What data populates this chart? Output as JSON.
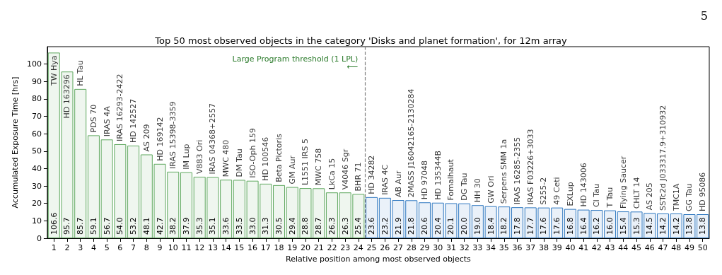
{
  "chart_data": {
    "type": "bar",
    "title": "Top 50 most observed objects in the category 'Disks and planet formation', for 12m array",
    "xlabel": "Relative position among most observed objects",
    "ylabel": "Accumulated Exposure Time [hrs]",
    "x": [
      1,
      2,
      3,
      4,
      5,
      6,
      7,
      8,
      9,
      10,
      11,
      12,
      13,
      14,
      15,
      16,
      17,
      18,
      19,
      20,
      21,
      22,
      23,
      24,
      25,
      26,
      27,
      28,
      29,
      30,
      31,
      32,
      33,
      34,
      35,
      36,
      37,
      38,
      39,
      40,
      41,
      42,
      43,
      44,
      45,
      46,
      47,
      48,
      49,
      50
    ],
    "values": [
      106.6,
      95.7,
      85.7,
      59.1,
      56.7,
      54.0,
      53.2,
      48.1,
      42.7,
      38.2,
      37.9,
      35.3,
      35.1,
      33.6,
      33.5,
      33.0,
      31.3,
      30.5,
      29.4,
      28.8,
      28.7,
      26.3,
      26.3,
      25.4,
      23.6,
      23.2,
      21.9,
      21.8,
      20.6,
      20.4,
      20.1,
      20.0,
      19.0,
      18.4,
      18.2,
      17.8,
      17.7,
      17.6,
      17.6,
      16.8,
      16.4,
      16.2,
      16.0,
      15.4,
      15.3,
      14.5,
      14.2,
      14.2,
      13.8,
      13.8
    ],
    "value_labels": [
      "106.6",
      "95.7",
      "85.7",
      "59.1",
      "56.7",
      "54.0",
      "53.2",
      "48.1",
      "42.7",
      "38.2",
      "37.9",
      "35.3",
      "35.1",
      "33.6",
      "33.5",
      "33.0",
      "31.3",
      "30.5",
      "29.4",
      "28.8",
      "28.7",
      "26.3",
      "26.3",
      "25.4",
      "23.6",
      "23.2",
      "21.9",
      "21.8",
      "20.6",
      "20.4",
      "20.1",
      "20.0",
      "19.0",
      "18.4",
      "18.2",
      "17.8",
      "17.7",
      "17.6",
      "17.6",
      "16.8",
      "16.4",
      "16.2",
      "16.0",
      "15.4",
      "15.3",
      "14.5",
      "14.2",
      "14.2",
      "13.8",
      "13.8"
    ],
    "colors": [
      "#5fa85f",
      "#5fa85f",
      "#5fa85f",
      "#5fa85f",
      "#5fa85f",
      "#5fa85f",
      "#5fa85f",
      "#5fa85f",
      "#5fa85f",
      "#5fa85f",
      "#5fa85f",
      "#5fa85f",
      "#5fa85f",
      "#5fa85f",
      "#5fa85f",
      "#5fa85f",
      "#5fa85f",
      "#5fa85f",
      "#5fa85f",
      "#5fa85f",
      "#5fa85f",
      "#5fa85f",
      "#5fa85f",
      "#5fa85f",
      "#2f78c0",
      "#2f78c0",
      "#2f78c0",
      "#2f78c0",
      "#2f78c0",
      "#2f78c0",
      "#2f78c0",
      "#2f78c0",
      "#2f78c0",
      "#2f78c0",
      "#2f78c0",
      "#2f78c0",
      "#2f78c0",
      "#2f78c0",
      "#2f78c0",
      "#2f78c0",
      "#2f78c0",
      "#2f78c0",
      "#2f78c0",
      "#2f78c0",
      "#2f78c0",
      "#2f78c0",
      "#2f78c0",
      "#2f78c0",
      "#2f78c0",
      "#2f78c0"
    ],
    "xlim": [
      0.5,
      50.5
    ],
    "xticks": [
      1,
      2,
      3,
      4,
      5,
      6,
      7,
      8,
      9,
      10,
      11,
      12,
      13,
      14,
      15,
      16,
      17,
      18,
      19,
      20,
      21,
      22,
      23,
      24,
      25,
      26,
      27,
      28,
      29,
      30,
      31,
      32,
      33,
      34,
      35,
      36,
      37,
      38,
      39,
      40,
      41,
      42,
      43,
      44,
      45,
      46,
      47,
      48,
      49,
      50
    ],
    "ylim": [
      0,
      110
    ],
    "yticks": [
      0,
      10,
      20,
      30,
      40,
      50,
      60,
      70,
      80,
      90,
      100
    ],
    "grid": false,
    "ref_lines": [
      {
        "axis": "x",
        "value": 24.5,
        "label": "Large Program threshold (1 LPL)\n⟵",
        "color": "#808080",
        "line_style": "dashed"
      }
    ],
    "annotations": [
      "5",
      {
        "text": "TW Hya",
        "x": 1,
        "y": 106.6
      },
      {
        "text": "HD 163296",
        "x": 2,
        "y": 95.7
      },
      {
        "text": "HL Tau",
        "x": 3,
        "y": 85.7
      },
      {
        "text": "PDS 70",
        "x": 4,
        "y": 59.1
      },
      {
        "text": "IRAS 4A",
        "x": 5,
        "y": 56.7
      },
      {
        "text": "IRAS 16293-2422",
        "x": 6,
        "y": 54.0
      },
      {
        "text": "HD 142527",
        "x": 7,
        "y": 53.2
      },
      {
        "text": "AS 209",
        "x": 8,
        "y": 48.1
      },
      {
        "text": "HD 169142",
        "x": 9,
        "y": 42.7
      },
      {
        "text": "IRAS 15398-3359",
        "x": 10,
        "y": 38.2
      },
      {
        "text": "IM Lup",
        "x": 11,
        "y": 37.9
      },
      {
        "text": "V883 Ori",
        "x": 12,
        "y": 35.3
      },
      {
        "text": "IRAS 04368+2557",
        "x": 13,
        "y": 35.1
      },
      {
        "text": "MWC 480",
        "x": 14,
        "y": 33.6
      },
      {
        "text": "DM Tau",
        "x": 15,
        "y": 33.5
      },
      {
        "text": "ISO-Oph 159",
        "x": 16,
        "y": 33.0
      },
      {
        "text": "HD 100546",
        "x": 17,
        "y": 31.3
      },
      {
        "text": "Beta Pictoris",
        "x": 18,
        "y": 30.5
      },
      {
        "text": "GM Aur",
        "x": 19,
        "y": 29.4
      },
      {
        "text": "L1551 IRS 5",
        "x": 20,
        "y": 28.8
      },
      {
        "text": "MWC 758",
        "x": 21,
        "y": 28.7
      },
      {
        "text": "LkCa 15",
        "x": 22,
        "y": 26.3
      },
      {
        "text": "V4046 Sgr",
        "x": 23,
        "y": 26.3
      },
      {
        "text": "BHR 71",
        "x": 24,
        "y": 25.4
      },
      {
        "text": "HD 34282",
        "x": 25,
        "y": 23.6
      },
      {
        "text": "IRAS 4C",
        "x": 26,
        "y": 23.2
      },
      {
        "text": "AB Aur",
        "x": 27,
        "y": 21.9
      },
      {
        "text": "2MASS J16042165-2130284",
        "x": 28,
        "y": 21.8
      },
      {
        "text": "HD 97048",
        "x": 29,
        "y": 20.6
      },
      {
        "text": "HD 135344B",
        "x": 30,
        "y": 20.4
      },
      {
        "text": "Fomalhaut",
        "x": 31,
        "y": 20.1
      },
      {
        "text": "DG Tau",
        "x": 32,
        "y": 20.0
      },
      {
        "text": "HH 30",
        "x": 33,
        "y": 19.0
      },
      {
        "text": "GW Ori",
        "x": 34,
        "y": 18.4
      },
      {
        "text": "Serpens SMM 1a",
        "x": 35,
        "y": 18.2
      },
      {
        "text": "IRAS 16285-2355",
        "x": 36,
        "y": 17.8
      },
      {
        "text": "IRAS F03226+3033",
        "x": 37,
        "y": 17.7
      },
      {
        "text": "S255-2",
        "x": 38,
        "y": 17.6
      },
      {
        "text": "49 Ceti",
        "x": 39,
        "y": 17.6
      },
      {
        "text": "EXLup",
        "x": 40,
        "y": 16.8
      },
      {
        "text": "HD 143006",
        "x": 41,
        "y": 16.4
      },
      {
        "text": "CI Tau",
        "x": 42,
        "y": 16.2
      },
      {
        "text": "T Tau",
        "x": 43,
        "y": 16.0
      },
      {
        "text": "Flying Saucer",
        "x": 44,
        "y": 15.4
      },
      {
        "text": "CHLT 14",
        "x": 45,
        "y": 15.3
      },
      {
        "text": "AS 205",
        "x": 46,
        "y": 14.5
      },
      {
        "text": "SSTc2d J033317.9+310932",
        "x": 47,
        "y": 14.2
      },
      {
        "text": "TMC1A",
        "x": 48,
        "y": 14.2
      },
      {
        "text": "GG Tau",
        "x": 49,
        "y": 13.8
      },
      {
        "text": "HD 95086",
        "x": 50,
        "y": 13.8
      }
    ]
  }
}
